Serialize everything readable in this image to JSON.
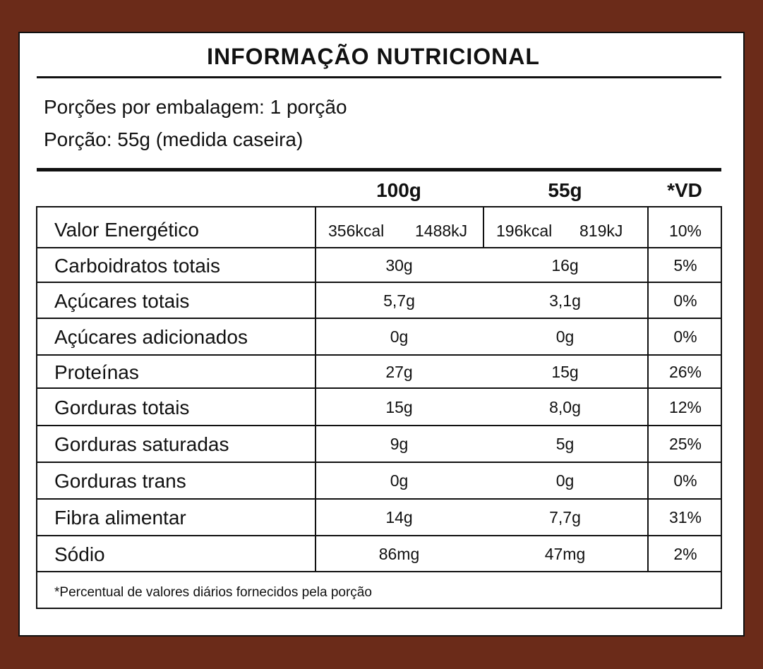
{
  "title": "INFORMAÇÃO NUTRICIONAL",
  "serving": {
    "per_package": "Porções por embalagem: 1 porção",
    "portion": "Porção: 55g (medida caseira)"
  },
  "headers": {
    "col_100g": "100g",
    "col_portion": "55g",
    "col_vd": "*VD"
  },
  "energy": {
    "label": "Valor Energético",
    "kcal_100g": "356kcal",
    "kj_100g": "1488kJ",
    "kcal_portion": "196kcal",
    "kj_portion": "819kJ",
    "vd": "10%"
  },
  "rows": [
    {
      "label": "Carboidratos totais",
      "v100": "30g",
      "vportion": "16g",
      "vd": "5%"
    },
    {
      "label": "Açúcares totais",
      "v100": "5,7g",
      "vportion": "3,1g",
      "vd": "0%"
    },
    {
      "label": "Açúcares adicionados",
      "v100": "0g",
      "vportion": "0g",
      "vd": "0%"
    },
    {
      "label": "Proteínas",
      "v100": "27g",
      "vportion": "15g",
      "vd": "26%"
    },
    {
      "label": "Gorduras totais",
      "v100": "15g",
      "vportion": "8,0g",
      "vd": "12%"
    },
    {
      "label": "Gorduras saturadas",
      "v100": "9g",
      "vportion": "5g",
      "vd": "25%"
    },
    {
      "label": "Gorduras trans",
      "v100": "0g",
      "vportion": "0g",
      "vd": "0%"
    },
    {
      "label": "Fibra alimentar",
      "v100": "14g",
      "vportion": "7,7g",
      "vd": "31%"
    },
    {
      "label": "Sódio",
      "v100": "86mg",
      "vportion": "47mg",
      "vd": "2%"
    }
  ],
  "footnote": "*Percentual de valores diários fornecidos pela porção",
  "colors": {
    "border_brown": "#6b2b19",
    "background": "#ffffff",
    "ink": "#111111"
  }
}
